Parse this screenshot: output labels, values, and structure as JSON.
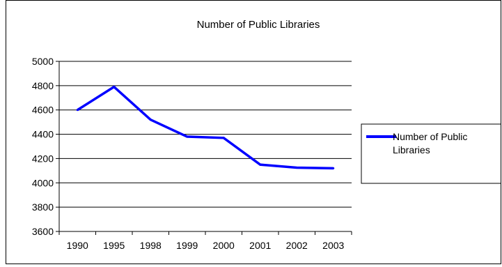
{
  "chart_data": {
    "type": "line",
    "title": "Number of Public Libraries",
    "xlabel": "",
    "ylabel": "",
    "categories": [
      "1990",
      "1995",
      "1998",
      "1999",
      "2000",
      "2001",
      "2002",
      "2003"
    ],
    "series": [
      {
        "name": "Number of Public Libraries",
        "values": [
          4600,
          4790,
          4520,
          4380,
          4370,
          4150,
          4125,
          4120
        ],
        "color": "#0000ff"
      }
    ],
    "ylim": [
      3600,
      5000
    ],
    "y_ticks": [
      "3600",
      "3800",
      "4000",
      "4200",
      "4400",
      "4600",
      "4800",
      "5000"
    ],
    "grid": "horizontal",
    "legend": {
      "position": "right",
      "lines": [
        "Number of Public",
        "Libraries"
      ]
    }
  }
}
